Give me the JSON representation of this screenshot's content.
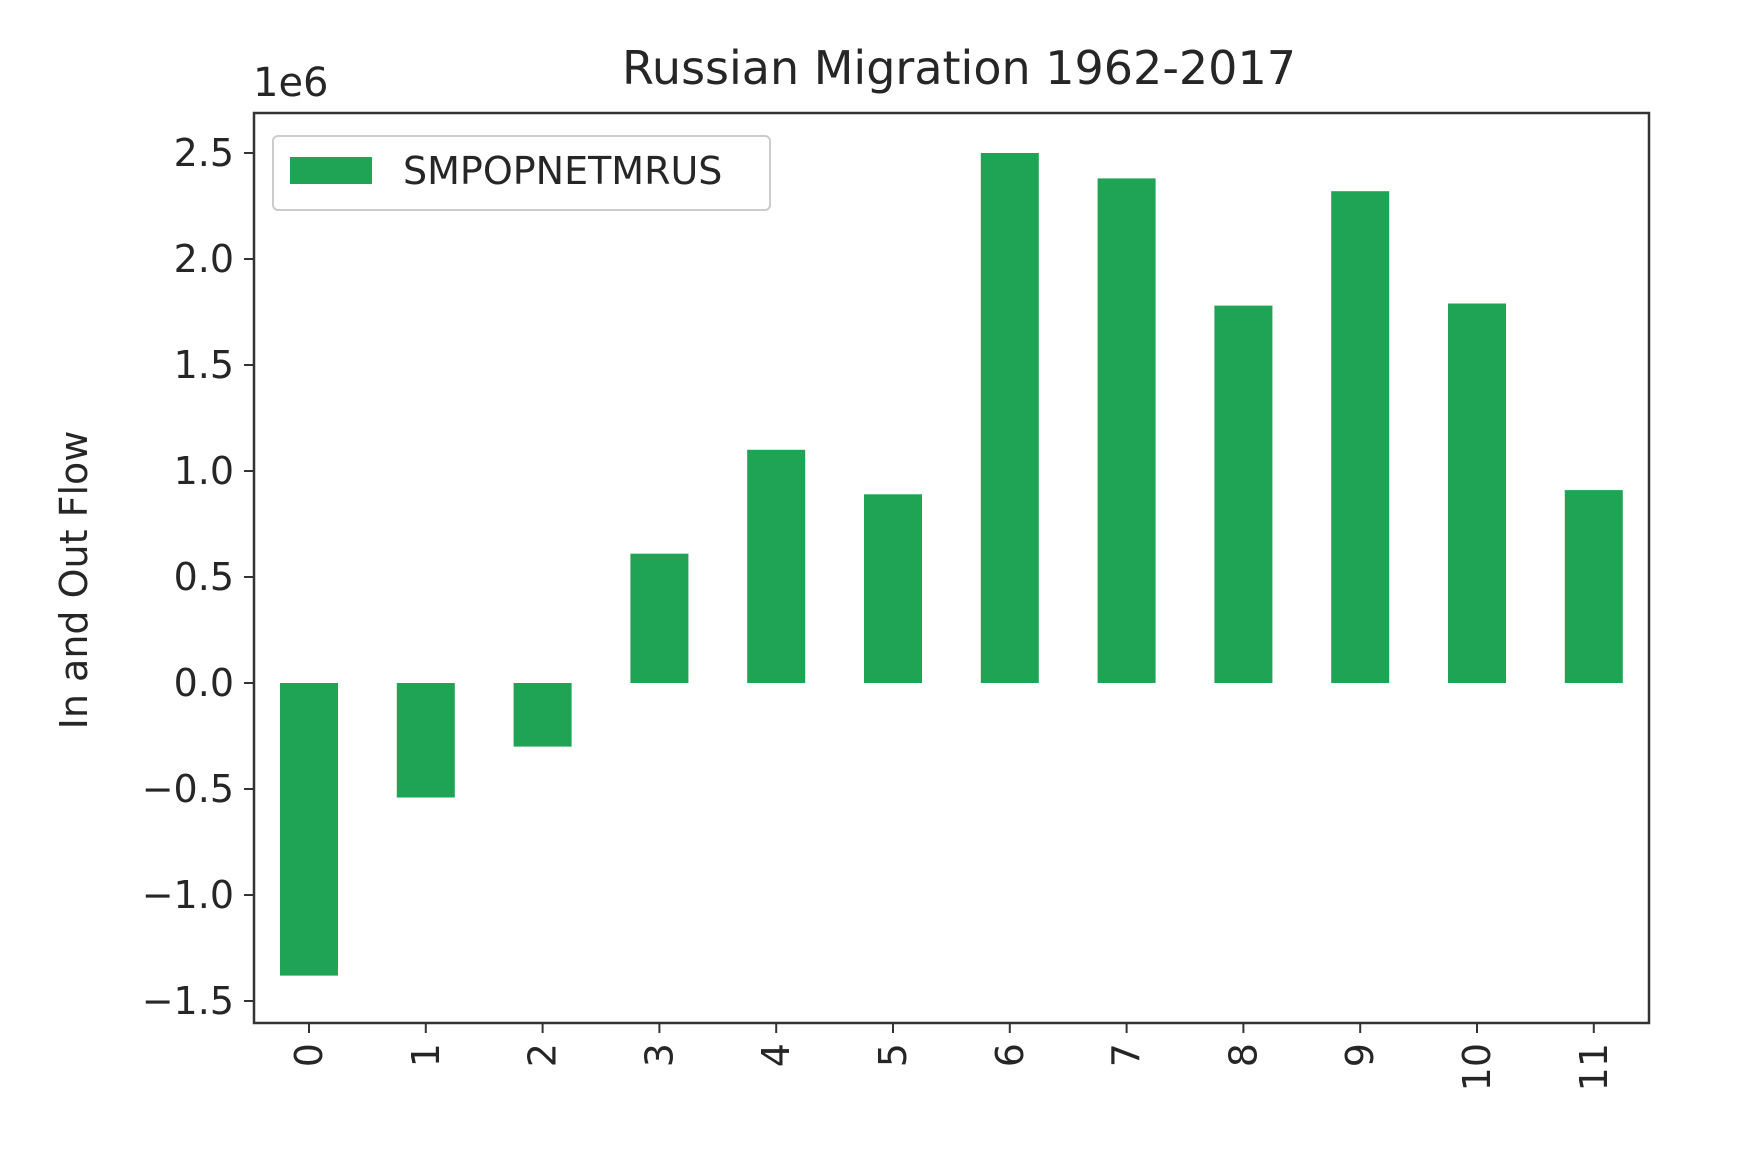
{
  "chart_data": {
    "type": "bar",
    "title": "Russian Migration 1962-2017",
    "xlabel": "",
    "ylabel": "In and Out Flow",
    "offset_label": "1e6",
    "categories": [
      "0",
      "1",
      "2",
      "3",
      "4",
      "5",
      "6",
      "7",
      "8",
      "9",
      "10",
      "11"
    ],
    "series": [
      {
        "name": "SMPOPNETMRUS",
        "color": "#1fa354",
        "values": [
          -1380000,
          -540000,
          -300000,
          610000,
          1100000,
          890000,
          2500000,
          2380000,
          1780000,
          2320000,
          1790000,
          910000
        ]
      }
    ],
    "yticks": [
      -1.5,
      -1.0,
      -0.5,
      0.0,
      0.5,
      1.0,
      1.5,
      2.0,
      2.5
    ],
    "ytick_labels": [
      "−1.5",
      "−1.0",
      "−0.5",
      "0.0",
      "0.5",
      "1.0",
      "1.5",
      "2.0",
      "2.5"
    ],
    "ylim": [
      -1.58,
      2.68
    ],
    "tick_scale": 1000000,
    "legend": "upper-left",
    "grid": false
  }
}
